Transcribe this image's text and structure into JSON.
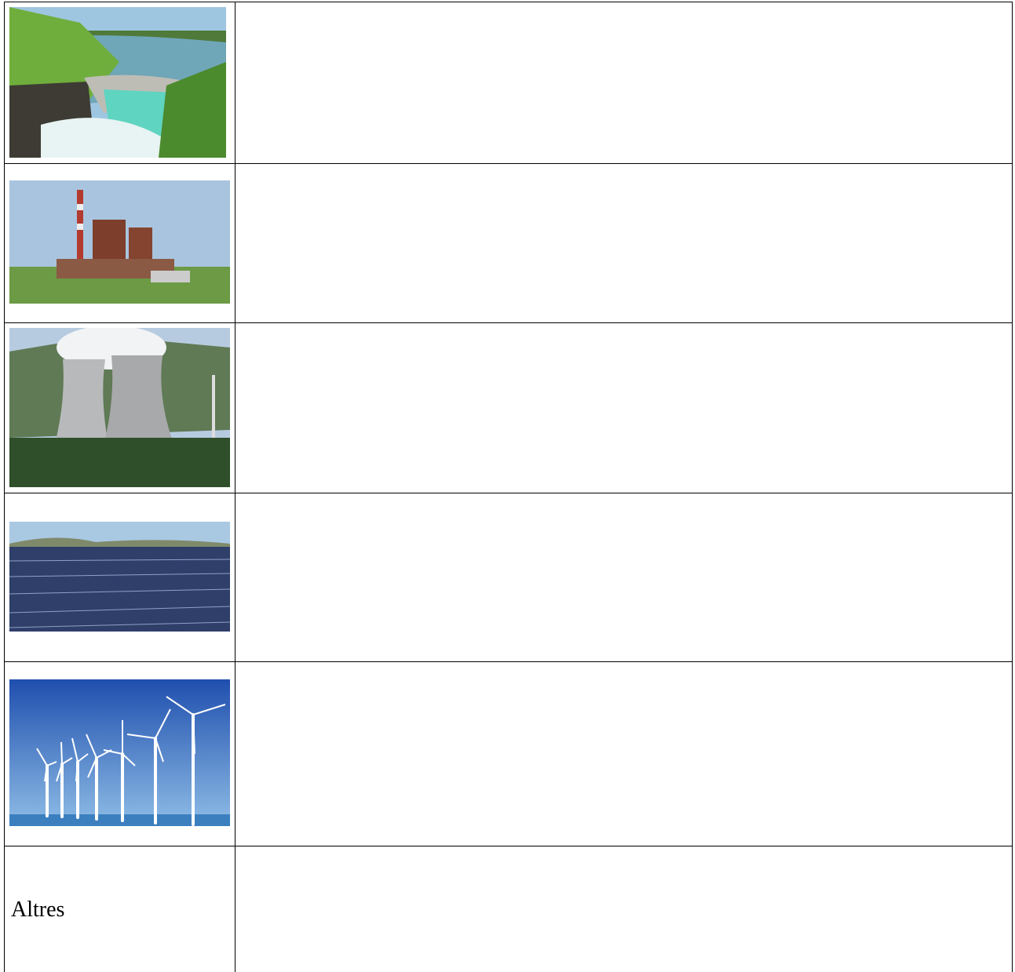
{
  "table": {
    "other_label": "Altres"
  }
}
